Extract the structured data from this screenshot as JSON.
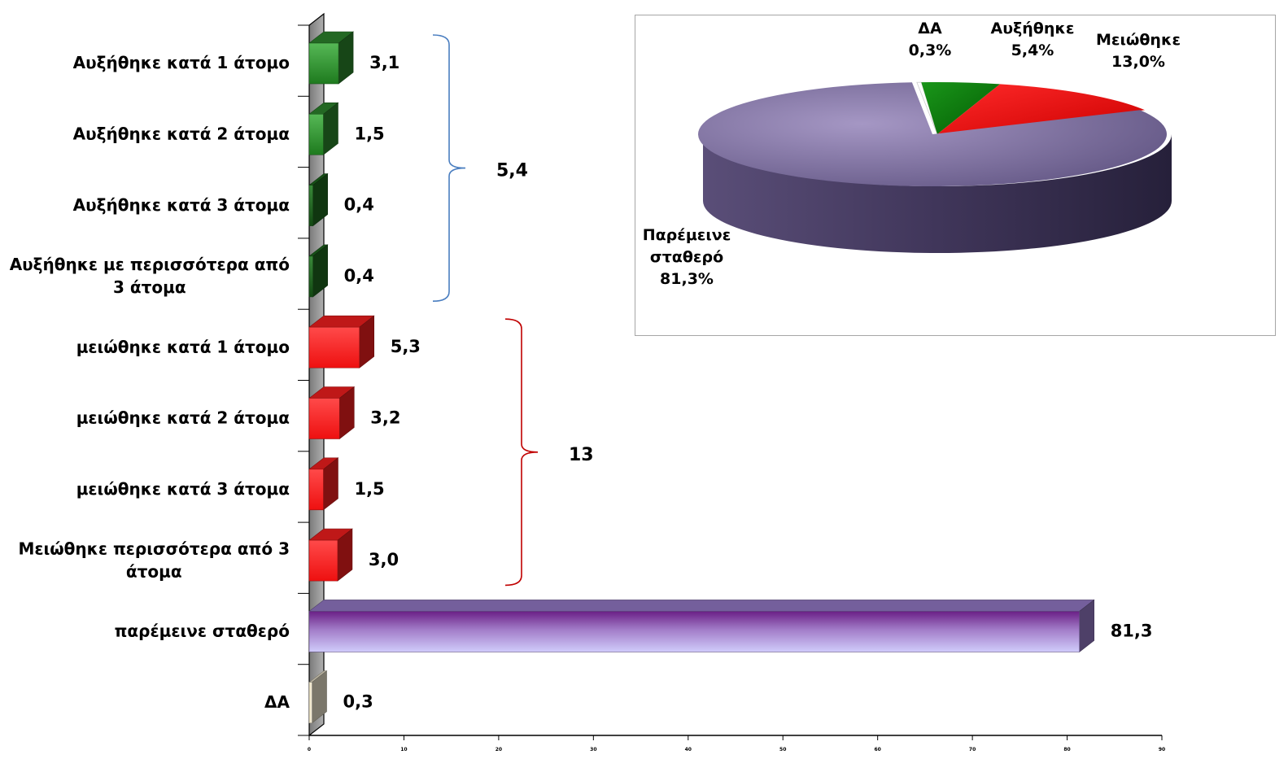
{
  "chart_data": [
    {
      "type": "bar",
      "orientation": "horizontal",
      "categories": [
        "Αυξήθηκε κατά 1 άτομο",
        "Αυξήθηκε κατά 2 άτομα",
        "Αυξήθηκε κατά 3 άτομα",
        "Αυξήθηκε με περισσότερα από 3 άτομα",
        "μειώθηκε κατά 1 άτομο",
        "μειώθηκε κατά 2 άτομα",
        "μειώθηκε κατά 3 άτομα",
        "Μειώθηκε περισσότερα από 3 άτομα",
        "παρέμεινε σταθερό",
        "ΔΑ"
      ],
      "values": [
        3.1,
        1.5,
        0.4,
        0.4,
        5.3,
        3.2,
        1.5,
        3.0,
        81.3,
        0.3
      ],
      "value_labels": [
        "3,1",
        "1,5",
        "0,4",
        "0,4",
        "5,3",
        "3,2",
        "1,5",
        "3,0",
        "81,3",
        "0,3"
      ],
      "colors": [
        "#2e8b2e",
        "#2e8b2e",
        "#1f6b1f",
        "#1f6b1f",
        "#ff2020",
        "#ff2020",
        "#ff2020",
        "#ff2020",
        "#9b7fd0",
        "#f5edd5"
      ],
      "xlim": [
        0,
        90
      ],
      "xticks": [
        "0",
        "10",
        "20",
        "30",
        "40",
        "50",
        "60",
        "70",
        "80",
        "90"
      ],
      "groups": [
        {
          "label": "5,4",
          "color": "#4a7ec0",
          "from": 0,
          "to": 3
        },
        {
          "label": "13",
          "color": "#c00000",
          "from": 4,
          "to": 7
        }
      ]
    },
    {
      "type": "pie",
      "slices": [
        {
          "label": "ΔΑ",
          "value_label": "0,3%",
          "value": 0.3,
          "color": "#ffffff"
        },
        {
          "label": "Αυξήθηκε",
          "value_label": "5,4%",
          "value": 5.4,
          "color": "#0a7a0a"
        },
        {
          "label": "Μειώθηκε",
          "value_label": "13,0%",
          "value": 13.0,
          "color": "#e00000"
        },
        {
          "label": "Παρέμεινε σταθερό",
          "value_label": "81,3%",
          "value": 81.3,
          "color": "#6e6190"
        }
      ]
    }
  ]
}
